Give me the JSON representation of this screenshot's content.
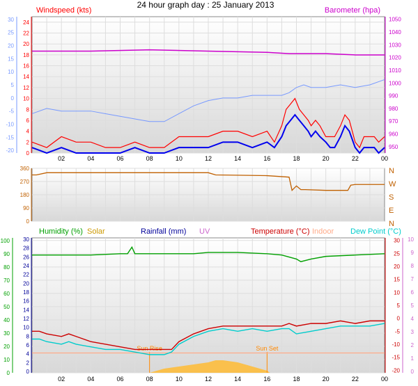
{
  "title": "24 hour graph day : 25 January 2013",
  "colors": {
    "wind_gust": "#ff0000",
    "wind_avg": "#0000ee",
    "barometer": "#cc00cc",
    "temp_scale": "#7799ff",
    "direction": "#c06000",
    "humidity": "#00a000",
    "solar": "#cc9900",
    "rainfall": "#000099",
    "uv": "#cc66cc",
    "temperature": "#cc0000",
    "indoor": "#ffaa88",
    "dewpoint": "#00cccc",
    "sun_fill": "#ffbb33",
    "sun_marker": "#ff8800"
  },
  "chart_data": [
    {
      "type": "line",
      "id": "wind_baro",
      "legend_left": "Windspeed (kts)",
      "legend_right": "Barometer (hpa)",
      "x_ticks": [
        "02",
        "04",
        "06",
        "08",
        "10",
        "12",
        "14",
        "16",
        "18",
        "20",
        "22",
        "00"
      ],
      "far_left_ticks": [
        30,
        25,
        20,
        15,
        10,
        5,
        0,
        -5,
        -10,
        -15,
        -20
      ],
      "left_ticks": [
        24,
        22,
        20,
        18,
        16,
        14,
        12,
        10,
        8,
        6,
        4,
        2,
        0
      ],
      "right_ticks": [
        1050,
        1040,
        1030,
        1020,
        1010,
        1000,
        990,
        980,
        970,
        960,
        950
      ],
      "ylim_wind": [
        0,
        25
      ],
      "ylim_baro": [
        945,
        1052
      ],
      "ylim_temp": [
        -21,
        31
      ],
      "series": [
        {
          "name": "Barometer (hpa)",
          "x": [
            0,
            4,
            8,
            12,
            16,
            17.5,
            18,
            20,
            22,
            24
          ],
          "y": [
            1025,
            1025,
            1026,
            1025,
            1024,
            1023,
            1023,
            1023,
            1022,
            1022
          ]
        },
        {
          "name": "Windspeed (kts)",
          "x": [
            0,
            1,
            2,
            3,
            4,
            5,
            6,
            7,
            8,
            9,
            10,
            11,
            12,
            13,
            14,
            15,
            16,
            16.5,
            17,
            17.3,
            17.6,
            17.9,
            18.2,
            18.5,
            18.8,
            19,
            19.3,
            19.6,
            20,
            20.3,
            20.6,
            21,
            21.3,
            21.6,
            22,
            22.3,
            22.6,
            23,
            23.3,
            23.6,
            24
          ],
          "y": [
            1,
            0,
            1,
            0,
            0,
            0,
            0,
            1,
            0,
            0,
            1,
            1,
            1,
            2,
            2,
            1,
            2,
            1,
            3,
            5,
            6,
            7,
            6,
            5,
            4,
            3,
            4,
            3,
            2,
            1,
            1,
            3,
            5,
            4,
            1,
            0,
            1,
            1,
            1,
            0,
            1
          ]
        },
        {
          "name": "Wind gust (kts)",
          "x": [
            0,
            1,
            2,
            3,
            4,
            5,
            6,
            7,
            8,
            9,
            10,
            11,
            12,
            13,
            14,
            15,
            16,
            16.5,
            17,
            17.3,
            17.6,
            17.9,
            18.2,
            18.5,
            18.8,
            19,
            19.3,
            19.6,
            20,
            20.3,
            20.6,
            21,
            21.3,
            21.6,
            22,
            22.3,
            22.6,
            23,
            23.3,
            23.6,
            24
          ],
          "y": [
            2,
            1,
            3,
            2,
            2,
            1,
            1,
            2,
            1,
            1,
            3,
            3,
            3,
            4,
            4,
            3,
            4,
            2,
            5,
            8,
            9,
            10,
            8,
            7,
            6,
            5,
            6,
            5,
            3,
            3,
            3,
            5,
            7,
            6,
            2,
            1,
            3,
            3,
            3,
            2,
            3
          ]
        },
        {
          "name": "Temperature (°C)",
          "x": [
            0,
            1,
            2,
            3,
            4,
            5,
            6,
            7,
            8,
            9,
            10,
            11,
            12,
            13,
            14,
            15,
            16,
            17,
            17.5,
            18,
            18.5,
            19,
            20,
            21,
            22,
            23,
            24
          ],
          "y": [
            -6,
            -4,
            -5,
            -5,
            -5,
            -6,
            -7,
            -8,
            -9,
            -9,
            -6,
            -3,
            -1,
            0,
            0,
            1,
            1,
            1,
            2,
            4,
            5,
            4,
            4,
            5,
            4,
            5,
            7
          ]
        }
      ]
    },
    {
      "type": "line",
      "id": "direction",
      "legend": [
        "N",
        "W",
        "S",
        "E",
        "N"
      ],
      "left_ticks": [
        360,
        270,
        180,
        90,
        0
      ],
      "ylim": [
        0,
        360
      ],
      "series": [
        {
          "name": "Wind direction",
          "x": [
            0,
            0.3,
            1,
            4,
            8,
            12,
            12.5,
            16,
            17.5,
            17.7,
            18,
            18.3,
            18.6,
            20,
            21.5,
            21.7,
            22,
            24
          ],
          "y": [
            315,
            315,
            330,
            330,
            330,
            330,
            315,
            310,
            300,
            210,
            240,
            215,
            215,
            210,
            210,
            245,
            250,
            250
          ]
        }
      ]
    },
    {
      "type": "line",
      "id": "temp_hum",
      "legend_humidity": "Humidity (%)",
      "legend_solar": "Solar",
      "legend_rain": "Rainfall (mm)",
      "legend_uv": "UV",
      "legend_temp": "Temperature (°C)",
      "legend_indoor": "Indoor",
      "legend_dew": "Dew Point (°C)",
      "sunrise_label": "Sun Rise",
      "sunset_label": "Sun Set",
      "sunrise_x": 8,
      "sunset_x": 16,
      "x_ticks": [
        "02",
        "04",
        "06",
        "08",
        "10",
        "12",
        "14",
        "16",
        "18",
        "20",
        "22",
        "00"
      ],
      "humidity_ticks": [
        100,
        90,
        80,
        70,
        60,
        50,
        40,
        30,
        20,
        10,
        0
      ],
      "rain_ticks": [
        30,
        28,
        26,
        24,
        22,
        20,
        18,
        16,
        14,
        12,
        10,
        8,
        6,
        4,
        2,
        0
      ],
      "temp_ticks": [
        30,
        25,
        20,
        15,
        10,
        5,
        0,
        -5,
        -10,
        -15,
        -20
      ],
      "uv_ticks": [
        10,
        9,
        8,
        7,
        6,
        5,
        4,
        3,
        2,
        1,
        0
      ],
      "ylim_humidity": [
        0,
        102
      ],
      "ylim_temp": [
        -21,
        31
      ],
      "series": [
        {
          "name": "Humidity (%)",
          "x": [
            0,
            2,
            4,
            6,
            6.5,
            6.8,
            7,
            8,
            10,
            11,
            12,
            14,
            16,
            17,
            18,
            18.3,
            19,
            20,
            22,
            24
          ],
          "y": [
            89,
            89,
            89,
            90,
            90,
            95,
            90,
            90,
            90,
            90,
            91,
            91,
            90,
            89,
            86,
            84,
            86,
            88,
            89,
            90
          ]
        },
        {
          "name": "Indoor",
          "x": [
            0,
            24
          ],
          "y": [
            15,
            15
          ]
        },
        {
          "name": "Temperature (°C)",
          "x": [
            0,
            0.5,
            1,
            2,
            2.5,
            3,
            4,
            5,
            6,
            7,
            8,
            9,
            9.5,
            10,
            11,
            12,
            13,
            14,
            15,
            16,
            17,
            17.5,
            18,
            19,
            20,
            21,
            22,
            23,
            24
          ],
          "y": [
            -5,
            -5,
            -6,
            -7,
            -6,
            -7,
            -9,
            -10,
            -11,
            -12,
            -12,
            -12,
            -12,
            -9,
            -6,
            -4,
            -3,
            -3,
            -3,
            -3,
            -3,
            -2,
            -3,
            -2,
            -2,
            -1,
            -2,
            -1,
            -1
          ]
        },
        {
          "name": "Dew Point (°C)",
          "x": [
            0,
            0.5,
            1,
            2,
            2.5,
            3,
            4,
            5,
            6,
            7,
            8,
            9,
            9.5,
            10,
            11,
            12,
            13,
            14,
            15,
            16,
            17,
            17.5,
            18,
            19,
            20,
            21,
            22,
            23,
            24
          ],
          "y": [
            -8,
            -8,
            -9,
            -10,
            -9,
            -10,
            -11,
            -12,
            -12,
            -13,
            -14,
            -14,
            -13,
            -10,
            -7,
            -5,
            -4,
            -5,
            -4,
            -5,
            -4,
            -4,
            -6,
            -5,
            -4,
            -3,
            -3,
            -3,
            -2
          ]
        },
        {
          "name": "Solar",
          "x": [
            8,
            8.5,
            9,
            10,
            11,
            12,
            12.5,
            13,
            14,
            15,
            16,
            16.2
          ],
          "y": [
            0,
            1,
            2,
            3,
            4,
            5,
            6,
            6,
            5,
            3,
            1,
            0
          ]
        }
      ]
    }
  ]
}
